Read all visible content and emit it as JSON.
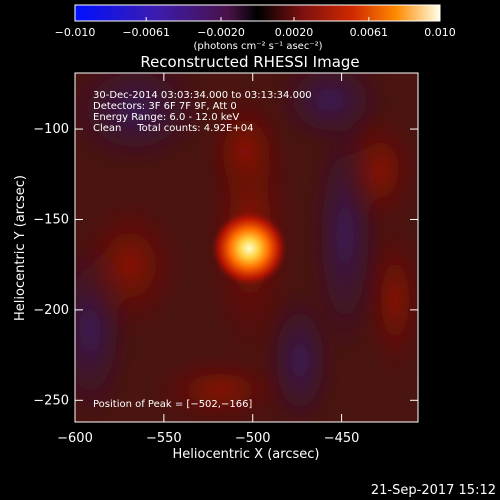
{
  "colorbar": {
    "ticks": [
      {
        "value": -0.01,
        "label": "−0.010"
      },
      {
        "value": -0.0061,
        "label": "−0.0061"
      },
      {
        "value": -0.002,
        "label": "−0.0020"
      },
      {
        "value": 0.002,
        "label": "0.0020"
      },
      {
        "value": 0.0061,
        "label": "0.0061"
      },
      {
        "value": 0.01,
        "label": "0.010"
      }
    ],
    "range": [
      -0.01,
      0.01
    ],
    "units_label": "(photons cm⁻² s⁻¹ asec⁻²)"
  },
  "chart_data": {
    "type": "heatmap",
    "title": "Reconstructed RHESSI Image",
    "xlabel": "Heliocentric X (arcsec)",
    "ylabel": "Heliocentric Y (arcsec)",
    "xlim": [
      -600,
      -407
    ],
    "ylim": [
      -262,
      -69
    ],
    "xticks": [
      {
        "value": -600,
        "label": "−600"
      },
      {
        "value": -550,
        "label": "−550"
      },
      {
        "value": -500,
        "label": "−500"
      },
      {
        "value": -450,
        "label": "−450"
      }
    ],
    "yticks": [
      {
        "value": -100,
        "label": "−100"
      },
      {
        "value": -150,
        "label": "−150"
      },
      {
        "value": -200,
        "label": "−200"
      },
      {
        "value": -250,
        "label": "−250"
      }
    ],
    "peak": [
      -502,
      -166
    ],
    "annotations": [
      "30-Dec-2014 03:03:34.000 to 03:13:34.000",
      "Detectors: 3F 6F 7F 9F, Att 0",
      "Energy Range: 6.0 - 12.0 keV",
      "Clean     Total counts: 4.92E+04"
    ],
    "peak_label": "Position of Peak = [−502,−166]"
  },
  "footer": {
    "timestamp": "21-Sep-2017 15:12"
  }
}
